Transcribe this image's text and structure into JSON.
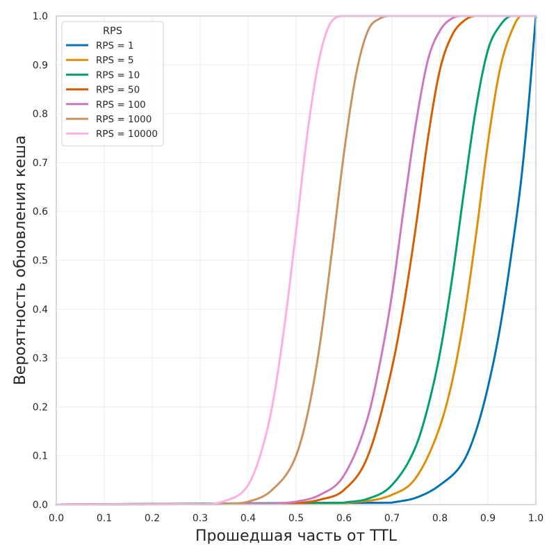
{
  "chart_data": {
    "type": "line",
    "title": "",
    "xlabel": "Прошедшая часть от TTL",
    "ylabel": "Вероятность обновления кеша",
    "xlim": [
      0.0,
      1.0
    ],
    "ylim": [
      0.0,
      1.0
    ],
    "xticks": [
      0.0,
      0.1,
      0.2,
      0.3,
      0.4,
      0.5,
      0.6,
      0.7,
      0.8,
      0.9,
      1.0
    ],
    "yticks": [
      0.0,
      0.1,
      0.2,
      0.3,
      0.4,
      0.5,
      0.6,
      0.7,
      0.8,
      0.9,
      1.0
    ],
    "xtick_labels": [
      "0.0",
      "0.1",
      "0.2",
      "0.3",
      "0.4",
      "0.5",
      "0.6",
      "0.7",
      "0.8",
      "0.9",
      "1.0"
    ],
    "ytick_labels": [
      "0.0",
      "0.1",
      "0.2",
      "0.3",
      "0.4",
      "0.5",
      "0.6",
      "0.7",
      "0.8",
      "0.9",
      "1.0"
    ],
    "grid": true,
    "legend": {
      "title": "RPS",
      "position": "top-left"
    },
    "series": [
      {
        "name": "RPS = 1",
        "color": "#0173b2",
        "x": [
          0.7,
          0.75,
          0.8,
          0.85,
          0.875,
          0.9,
          0.925,
          0.95,
          0.97,
          0.985,
          1.0
        ],
        "y": [
          0.004,
          0.014,
          0.04,
          0.09,
          0.15,
          0.24,
          0.36,
          0.52,
          0.67,
          0.82,
          1.0
        ]
      },
      {
        "name": "RPS = 5",
        "color": "#de8f05",
        "x": [
          0.6,
          0.7,
          0.75,
          0.8,
          0.825,
          0.85,
          0.875,
          0.9,
          0.925,
          0.95,
          0.97,
          1.0
        ],
        "y": [
          0.002,
          0.02,
          0.055,
          0.16,
          0.25,
          0.38,
          0.55,
          0.74,
          0.89,
          0.97,
          1.0,
          1.0
        ]
      },
      {
        "name": "RPS = 10",
        "color": "#029e73",
        "x": [
          0.6,
          0.65,
          0.7,
          0.75,
          0.775,
          0.8,
          0.825,
          0.85,
          0.875,
          0.9,
          0.925,
          0.95,
          1.0
        ],
        "y": [
          0.004,
          0.012,
          0.04,
          0.12,
          0.2,
          0.31,
          0.46,
          0.64,
          0.81,
          0.93,
          0.98,
          1.0,
          1.0
        ]
      },
      {
        "name": "RPS = 50",
        "color": "#d55e00",
        "x": [
          0.5,
          0.55,
          0.6,
          0.65,
          0.7,
          0.725,
          0.75,
          0.775,
          0.8,
          0.825,
          0.85,
          0.875,
          1.0
        ],
        "y": [
          0.002,
          0.01,
          0.03,
          0.1,
          0.28,
          0.41,
          0.57,
          0.75,
          0.89,
          0.96,
          0.99,
          1.0,
          1.0
        ]
      },
      {
        "name": "RPS = 100",
        "color": "#cc78bc",
        "x": [
          0.45,
          0.5,
          0.55,
          0.6,
          0.65,
          0.675,
          0.7,
          0.725,
          0.75,
          0.775,
          0.8,
          0.825,
          0.85,
          1.0
        ],
        "y": [
          0.002,
          0.006,
          0.02,
          0.06,
          0.18,
          0.29,
          0.43,
          0.61,
          0.78,
          0.91,
          0.97,
          0.995,
          1.0,
          1.0
        ]
      },
      {
        "name": "RPS = 1000",
        "color": "#ca9161",
        "x": [
          0.35,
          0.4,
          0.45,
          0.5,
          0.525,
          0.55,
          0.575,
          0.6,
          0.625,
          0.65,
          0.675,
          0.7,
          1.0
        ],
        "y": [
          0.001,
          0.006,
          0.03,
          0.1,
          0.19,
          0.33,
          0.52,
          0.72,
          0.88,
          0.97,
          0.995,
          1.0,
          1.0
        ]
      },
      {
        "name": "RPS = 10000",
        "color": "#fbafe4",
        "x": [
          0.0,
          0.3,
          0.35,
          0.4,
          0.425,
          0.45,
          0.475,
          0.5,
          0.525,
          0.55,
          0.575,
          0.6,
          1.0
        ],
        "y": [
          0.0,
          0.001,
          0.007,
          0.04,
          0.1,
          0.2,
          0.36,
          0.56,
          0.77,
          0.92,
          0.99,
          1.0,
          1.0
        ]
      }
    ]
  }
}
